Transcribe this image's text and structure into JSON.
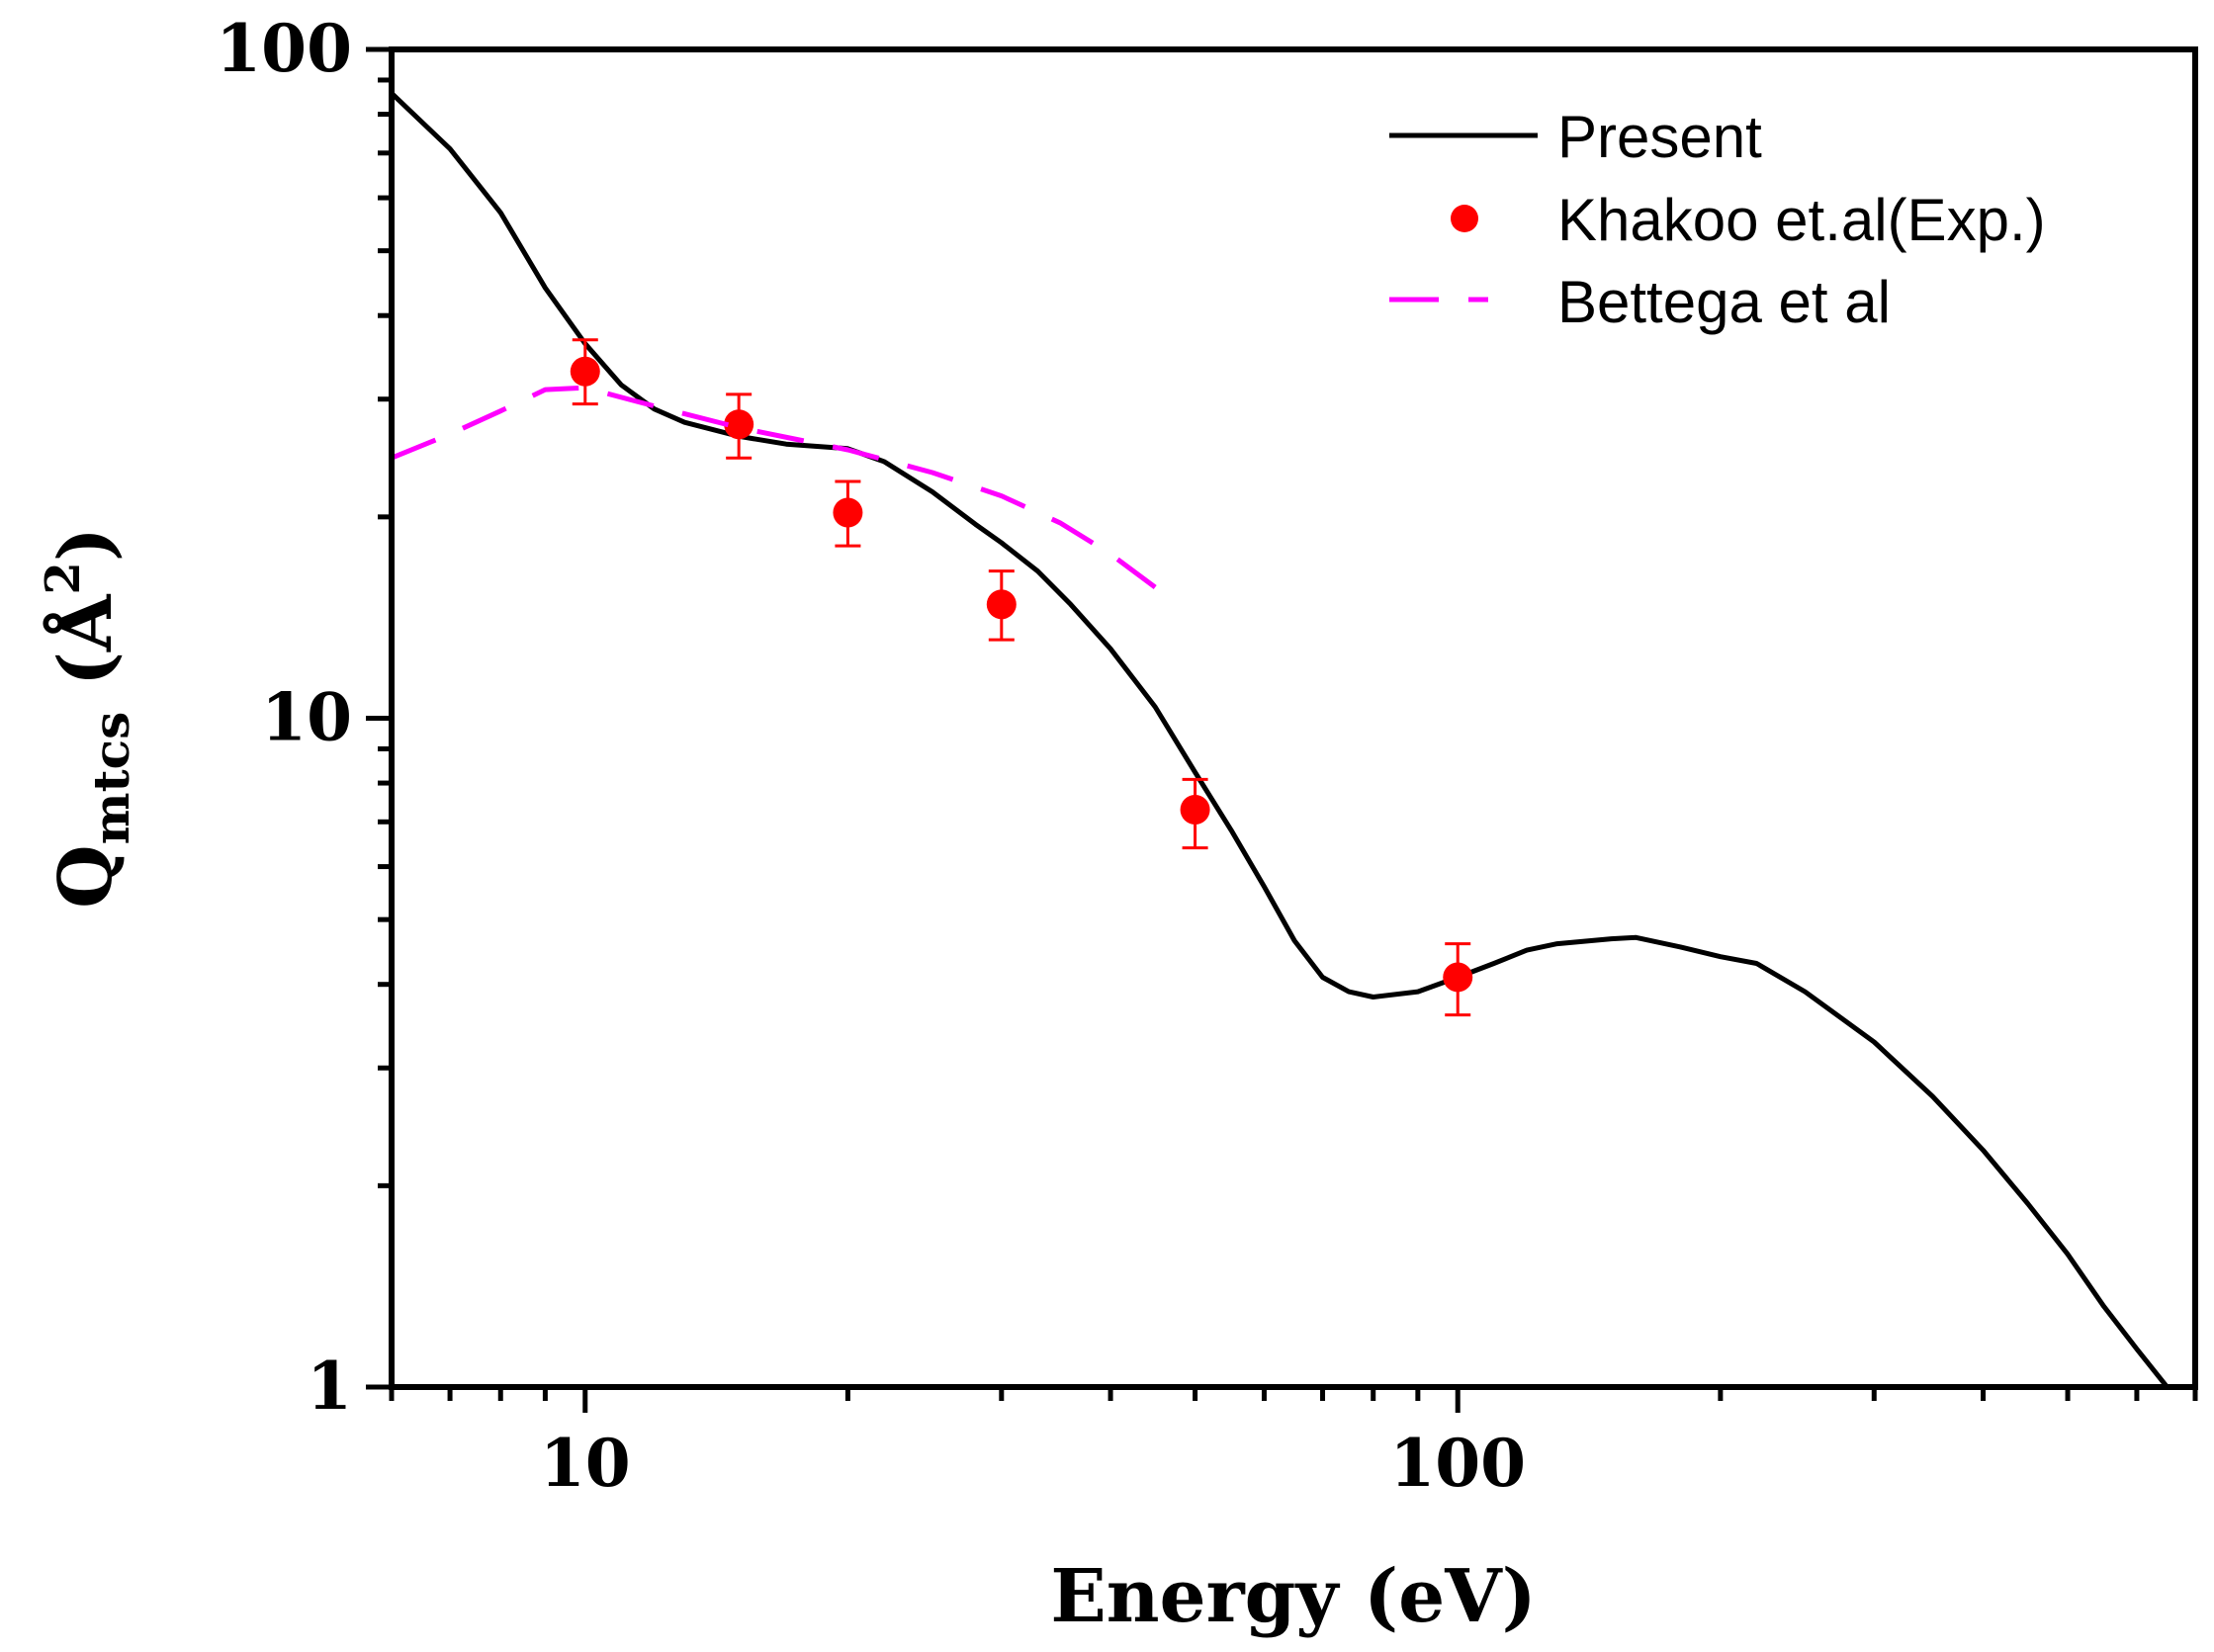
{
  "chart_data": {
    "type": "line",
    "title": "",
    "xlabel": "Energy (eV)",
    "ylabel": {
      "symbol": "Q",
      "subscript": "mtcs",
      "unit_open": "(",
      "unit": "Å",
      "superscript": "2",
      "unit_close": ")"
    },
    "xscale": "log",
    "yscale": "log",
    "xlim": [
      6,
      700
    ],
    "ylim": [
      1,
      100
    ],
    "x_tick_labels": [
      {
        "value": 10,
        "label": "10"
      },
      {
        "value": 100,
        "label": "100"
      }
    ],
    "y_tick_labels": [
      {
        "value": 1,
        "label": "1"
      },
      {
        "value": 10,
        "label": "10"
      },
      {
        "value": 100,
        "label": "100"
      }
    ],
    "grid": false,
    "legend_position": "top-right",
    "series": [
      {
        "name": "Present",
        "kind": "line",
        "style": "solid",
        "color": "#000000",
        "points": [
          [
            6,
            86
          ],
          [
            7,
            71
          ],
          [
            8,
            57
          ],
          [
            9,
            44
          ],
          [
            10,
            36.3
          ],
          [
            11,
            31.5
          ],
          [
            12,
            29
          ],
          [
            13,
            27.7
          ],
          [
            15,
            26.4
          ],
          [
            17,
            25.7
          ],
          [
            20,
            25.3
          ],
          [
            22,
            24.2
          ],
          [
            25,
            21.8
          ],
          [
            28,
            19.5
          ],
          [
            30,
            18.3
          ],
          [
            33,
            16.6
          ],
          [
            36,
            14.8
          ],
          [
            40,
            12.7
          ],
          [
            45,
            10.4
          ],
          [
            50,
            8.3
          ],
          [
            55,
            6.8
          ],
          [
            60,
            5.6
          ],
          [
            65,
            4.65
          ],
          [
            70,
            4.1
          ],
          [
            75,
            3.9
          ],
          [
            80,
            3.83
          ],
          [
            90,
            3.9
          ],
          [
            100,
            4.1
          ],
          [
            110,
            4.3
          ],
          [
            120,
            4.5
          ],
          [
            130,
            4.6
          ],
          [
            150,
            4.68
          ],
          [
            160,
            4.7
          ],
          [
            180,
            4.55
          ],
          [
            200,
            4.4
          ],
          [
            220,
            4.3
          ],
          [
            250,
            3.9
          ],
          [
            300,
            3.28
          ],
          [
            350,
            2.72
          ],
          [
            400,
            2.26
          ],
          [
            450,
            1.88
          ],
          [
            500,
            1.58
          ],
          [
            550,
            1.32
          ],
          [
            600,
            1.14
          ],
          [
            650,
            1.0
          ]
        ]
      },
      {
        "name": "Khakoo et.al(Exp.)",
        "kind": "scatter",
        "marker": "circle",
        "color": "#ff0000",
        "points": [
          {
            "x": 10,
            "y": 33,
            "ylow": 29.5,
            "yhigh": 36.8
          },
          {
            "x": 15,
            "y": 27.5,
            "ylow": 24.5,
            "yhigh": 30.5
          },
          {
            "x": 20,
            "y": 20.3,
            "ylow": 18.1,
            "yhigh": 22.6
          },
          {
            "x": 30,
            "y": 14.8,
            "ylow": 13.1,
            "yhigh": 16.6
          },
          {
            "x": 50,
            "y": 7.3,
            "ylow": 6.4,
            "yhigh": 8.1
          },
          {
            "x": 100,
            "y": 4.1,
            "ylow": 3.6,
            "yhigh": 4.6
          }
        ]
      },
      {
        "name": "Bettega et al",
        "kind": "line",
        "style": "dashed",
        "color": "#ff00ff",
        "points": [
          [
            6,
            24.5
          ],
          [
            7,
            26.6
          ],
          [
            8,
            28.8
          ],
          [
            9,
            31
          ],
          [
            10,
            31.2
          ],
          [
            12,
            29.3
          ],
          [
            15,
            27.2
          ],
          [
            20,
            25.2
          ],
          [
            25,
            23.3
          ],
          [
            30,
            21.5
          ],
          [
            35,
            19.6
          ],
          [
            40,
            17.6
          ],
          [
            45,
            15.7
          ]
        ]
      }
    ]
  }
}
